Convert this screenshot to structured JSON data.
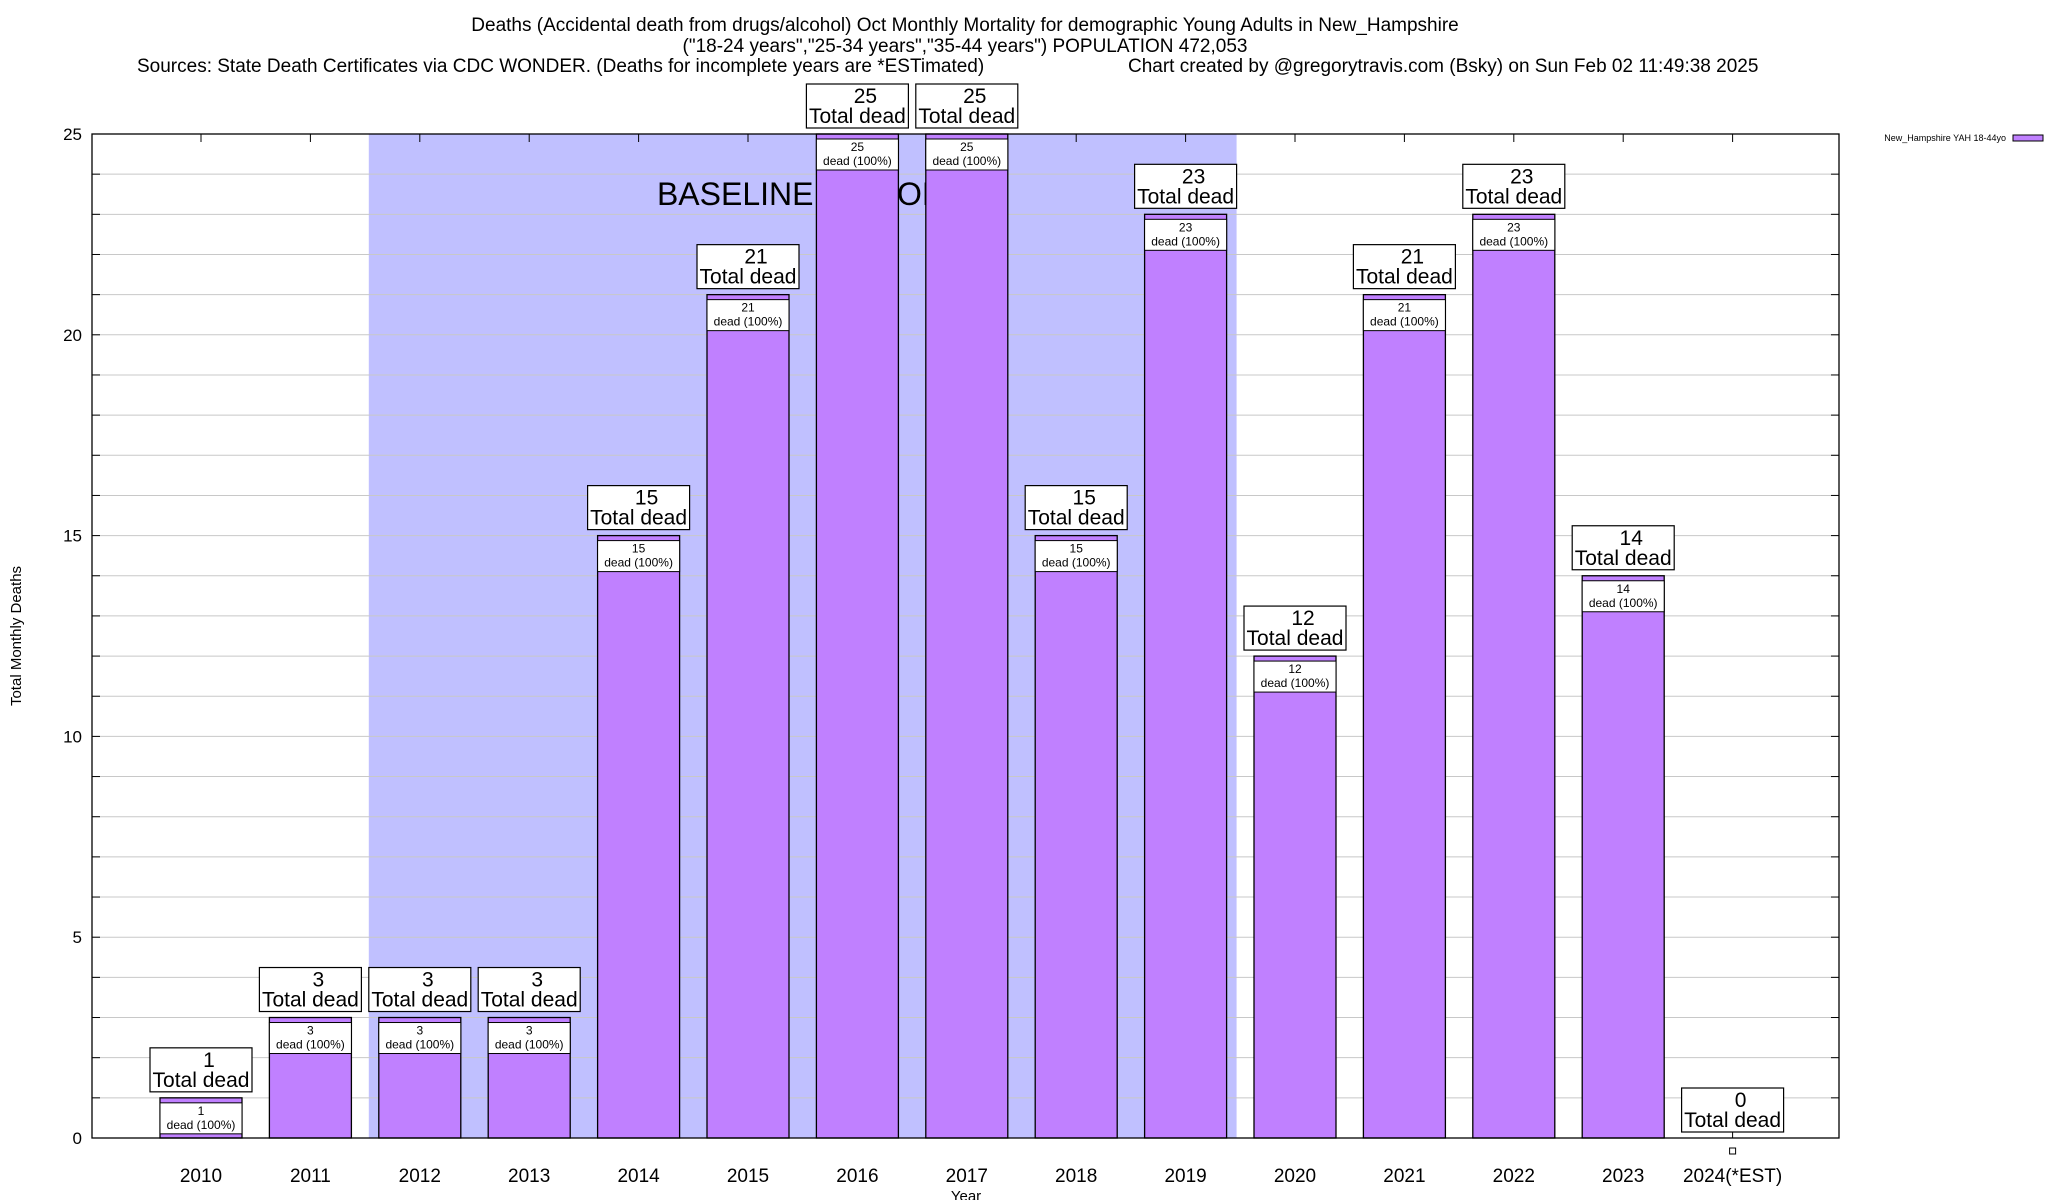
{
  "chart_data": {
    "type": "bar",
    "title_lines": [
      "Deaths (Accidental death from drugs/alcohol) Oct Monthly Mortality for demographic Young Adults in New_Hampshire",
      "(\"18-24 years\",\"25-34 years\",\"35-44 years\") POPULATION 472,053"
    ],
    "sources": "Sources: State Death Certificates via CDC WONDER. (Deaths for incomplete years are *ESTimated)",
    "credit": "Chart created by @gregorytravis.com (Bsky) on Sun Feb 02 11:49:38 2025",
    "xlabel": "Year",
    "ylabel": "Total Monthly Deaths",
    "ylim": [
      0,
      25
    ],
    "yticks": [
      0,
      5,
      10,
      15,
      20,
      25
    ],
    "grid": true,
    "legend": {
      "position": "top-right",
      "label": "New_Hampshire YAH 18-44yo"
    },
    "annotation": "BASELINE PERIOD",
    "baseline_period": [
      "2012",
      "2019"
    ],
    "total_label": "Total dead",
    "inner_label": "dead (100%)",
    "categories": [
      "2010",
      "2011",
      "2012",
      "2013",
      "2014",
      "2015",
      "2016",
      "2017",
      "2018",
      "2019",
      "2020",
      "2021",
      "2022",
      "2023",
      "2024(*EST)"
    ],
    "series": [
      {
        "name": "New_Hampshire YAH 18-44yo",
        "values": [
          1,
          3,
          3,
          3,
          15,
          21,
          25,
          25,
          15,
          23,
          12,
          21,
          23,
          14,
          0
        ]
      }
    ],
    "colors": {
      "bar": "#c080ff",
      "baseline": "#c0c0ff",
      "grid": "#c8c8c8"
    }
  }
}
